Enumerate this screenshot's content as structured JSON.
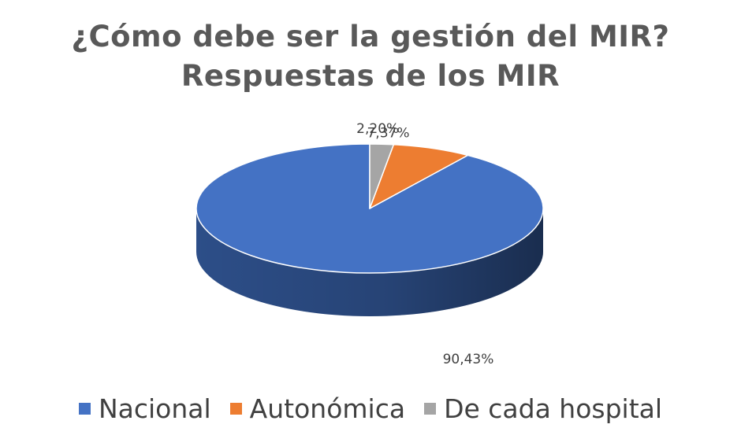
{
  "chart_data": {
    "type": "pie",
    "title_lines": [
      "¿Cómo debe ser la gestión del MIR?",
      "Respuestas de los MIR"
    ],
    "slices": [
      {
        "name": "Nacional",
        "value": 90.43,
        "label": "90,43%",
        "color": "#4472C4",
        "side_color": "#2F528F"
      },
      {
        "name": "Autonómica",
        "value": 7.37,
        "label": "7,37%",
        "color": "#ED7D31",
        "side_color": "#AE5A21"
      },
      {
        "name": "De cada hospital",
        "value": 2.2,
        "label": "2,20%",
        "color": "#A5A5A5",
        "side_color": "#7B7B7B"
      }
    ],
    "legend_position": "bottom"
  }
}
